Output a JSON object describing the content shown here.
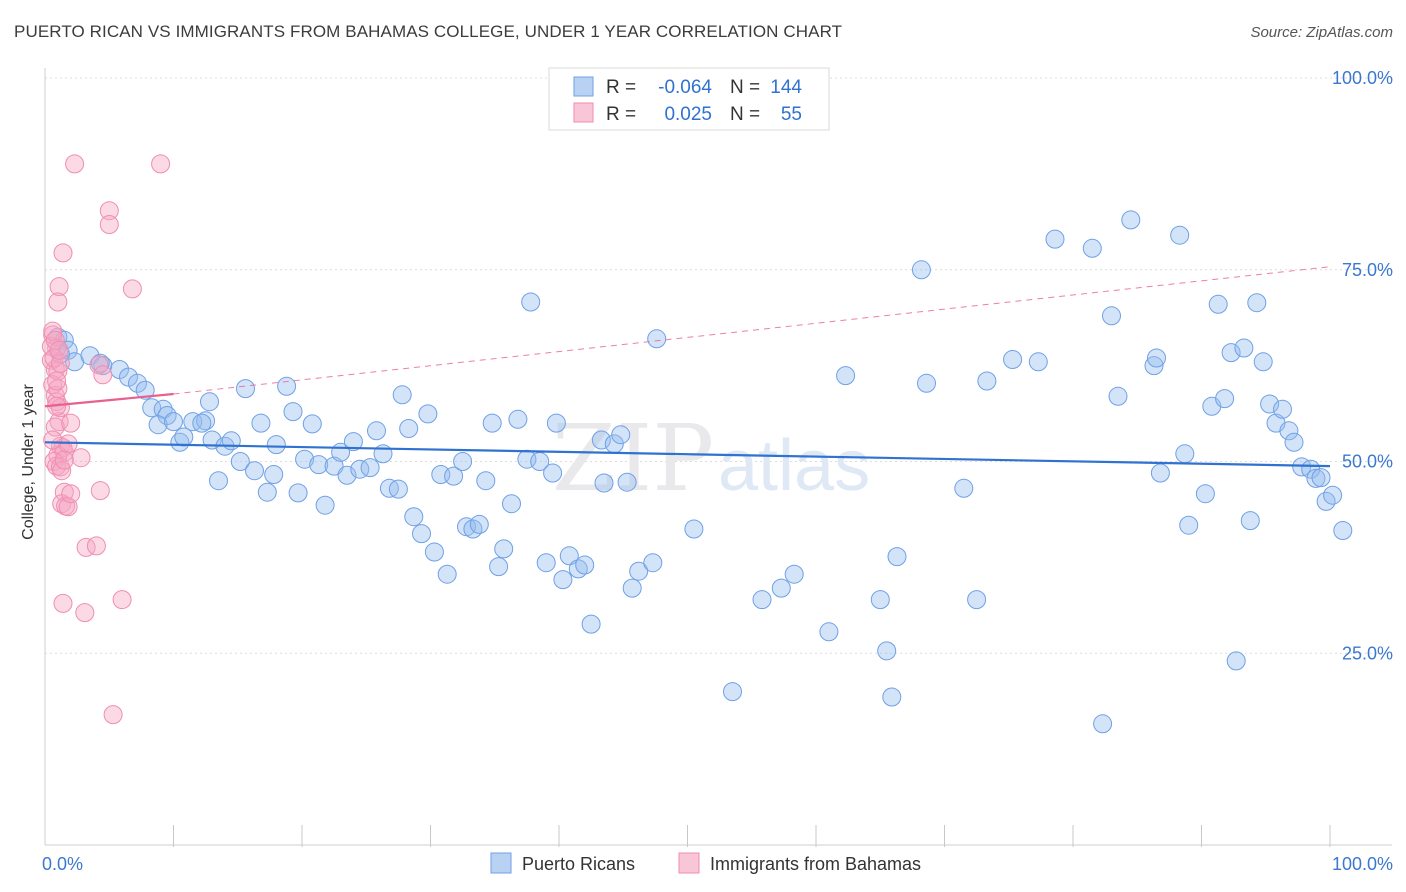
{
  "title": "PUERTO RICAN VS IMMIGRANTS FROM BAHAMAS COLLEGE, UNDER 1 YEAR CORRELATION CHART",
  "source": "Source: ZipAtlas.com",
  "watermark": {
    "zip": "ZIP",
    "atlas": "atlas"
  },
  "legend_top": {
    "rows": [
      {
        "r_label": "R =",
        "r_value": "-0.064",
        "n_label": "N =",
        "n_value": "144"
      },
      {
        "r_label": "R =",
        "r_value": "0.025",
        "n_label": "N =",
        "n_value": "55"
      }
    ]
  },
  "legend_bottom": [
    "Puerto Ricans",
    "Immigrants from Bahamas"
  ],
  "chart_data": {
    "type": "scatter",
    "xlabel": "",
    "ylabel": "College, Under 1 year",
    "xlim": [
      0,
      100
    ],
    "ylim": [
      0,
      100
    ],
    "x_tick_labels": [
      {
        "value": 0,
        "label": "0.0%"
      },
      {
        "value": 100,
        "label": "100.0%"
      }
    ],
    "y_tick_labels": [
      {
        "value": 25,
        "label": "25.0%"
      },
      {
        "value": 50,
        "label": "50.0%"
      },
      {
        "value": 75,
        "label": "75.0%"
      },
      {
        "value": 100,
        "label": "100.0%"
      }
    ],
    "series": [
      {
        "name": "Puerto Ricans",
        "color": "#6fa1e6",
        "line_color": "#2f72cf",
        "r": -0.064,
        "n": 144,
        "trend": {
          "x0": 0,
          "y0": 52.5,
          "x1": 100,
          "y1": 49.4
        },
        "points": [
          [
            1.0,
            66.2
          ],
          [
            1.5,
            65.8
          ],
          [
            1.8,
            64.5
          ],
          [
            2.3,
            63.0
          ],
          [
            1.2,
            64.0
          ],
          [
            3.5,
            63.8
          ],
          [
            4.5,
            62.5
          ],
          [
            4.3,
            62.8
          ],
          [
            5.8,
            62.0
          ],
          [
            6.5,
            61.0
          ],
          [
            7.2,
            60.2
          ],
          [
            7.8,
            59.3
          ],
          [
            8.3,
            57.0
          ],
          [
            9.2,
            56.8
          ],
          [
            9.5,
            56.0
          ],
          [
            8.8,
            54.8
          ],
          [
            10.0,
            55.2
          ],
          [
            10.5,
            52.5
          ],
          [
            10.8,
            53.2
          ],
          [
            11.5,
            55.2
          ],
          [
            12.5,
            55.3
          ],
          [
            12.8,
            57.8
          ],
          [
            12.2,
            55.0
          ],
          [
            13.0,
            52.8
          ],
          [
            13.5,
            47.5
          ],
          [
            14.0,
            52.0
          ],
          [
            14.5,
            52.7
          ],
          [
            15.2,
            50.0
          ],
          [
            15.6,
            59.5
          ],
          [
            16.3,
            48.8
          ],
          [
            16.8,
            55.0
          ],
          [
            17.3,
            46.0
          ],
          [
            17.8,
            48.3
          ],
          [
            18.0,
            52.2
          ],
          [
            18.8,
            59.8
          ],
          [
            19.3,
            56.5
          ],
          [
            19.7,
            45.9
          ],
          [
            20.2,
            50.3
          ],
          [
            20.8,
            54.9
          ],
          [
            21.3,
            49.6
          ],
          [
            21.8,
            44.3
          ],
          [
            22.5,
            49.4
          ],
          [
            23.0,
            51.2
          ],
          [
            23.5,
            48.2
          ],
          [
            24.0,
            52.6
          ],
          [
            24.5,
            49.0
          ],
          [
            25.3,
            49.2
          ],
          [
            25.8,
            54.0
          ],
          [
            26.3,
            51.0
          ],
          [
            26.8,
            46.5
          ],
          [
            27.5,
            46.4
          ],
          [
            27.8,
            58.7
          ],
          [
            28.3,
            54.3
          ],
          [
            28.7,
            42.8
          ],
          [
            29.3,
            40.6
          ],
          [
            29.8,
            56.2
          ],
          [
            30.3,
            38.2
          ],
          [
            30.8,
            48.3
          ],
          [
            31.3,
            35.3
          ],
          [
            31.8,
            48.1
          ],
          [
            32.5,
            50.0
          ],
          [
            32.8,
            41.5
          ],
          [
            33.3,
            41.2
          ],
          [
            33.8,
            41.8
          ],
          [
            34.3,
            47.5
          ],
          [
            34.8,
            55.0
          ],
          [
            35.3,
            36.3
          ],
          [
            35.7,
            38.6
          ],
          [
            36.3,
            44.5
          ],
          [
            36.8,
            55.5
          ],
          [
            37.5,
            50.3
          ],
          [
            37.8,
            70.8
          ],
          [
            38.5,
            50.0
          ],
          [
            39.0,
            36.8
          ],
          [
            39.5,
            48.5
          ],
          [
            39.8,
            55.0
          ],
          [
            40.3,
            34.6
          ],
          [
            40.8,
            37.7
          ],
          [
            41.5,
            36.0
          ],
          [
            42.0,
            36.5
          ],
          [
            42.5,
            28.8
          ],
          [
            43.3,
            52.8
          ],
          [
            43.5,
            47.2
          ],
          [
            44.3,
            52.3
          ],
          [
            44.8,
            53.5
          ],
          [
            45.3,
            47.3
          ],
          [
            45.7,
            33.5
          ],
          [
            46.2,
            35.7
          ],
          [
            47.3,
            36.8
          ],
          [
            47.6,
            66.0
          ],
          [
            50.5,
            41.2
          ],
          [
            53.5,
            20.0
          ],
          [
            55.8,
            32.0
          ],
          [
            57.3,
            33.5
          ],
          [
            58.3,
            35.3
          ],
          [
            61.0,
            27.8
          ],
          [
            62.3,
            61.2
          ],
          [
            65.0,
            32.0
          ],
          [
            65.5,
            25.3
          ],
          [
            65.9,
            19.3
          ],
          [
            66.3,
            37.6
          ],
          [
            68.2,
            75.0
          ],
          [
            68.6,
            60.2
          ],
          [
            71.5,
            46.5
          ],
          [
            72.5,
            32.0
          ],
          [
            73.3,
            60.5
          ],
          [
            75.3,
            63.3
          ],
          [
            77.3,
            63.0
          ],
          [
            78.6,
            79.0
          ],
          [
            81.5,
            77.8
          ],
          [
            82.3,
            15.8
          ],
          [
            83.0,
            69.0
          ],
          [
            83.5,
            58.5
          ],
          [
            84.5,
            81.5
          ],
          [
            86.3,
            62.5
          ],
          [
            86.5,
            63.5
          ],
          [
            86.8,
            48.5
          ],
          [
            88.3,
            79.5
          ],
          [
            88.7,
            51.0
          ],
          [
            89.0,
            41.7
          ],
          [
            90.3,
            45.8
          ],
          [
            90.8,
            57.2
          ],
          [
            91.3,
            70.5
          ],
          [
            91.8,
            58.2
          ],
          [
            92.3,
            64.2
          ],
          [
            92.7,
            24.0
          ],
          [
            93.3,
            64.8
          ],
          [
            93.8,
            42.3
          ],
          [
            94.3,
            70.7
          ],
          [
            94.8,
            63.0
          ],
          [
            95.3,
            57.5
          ],
          [
            95.8,
            55.0
          ],
          [
            96.3,
            56.8
          ],
          [
            96.8,
            54.0
          ],
          [
            97.2,
            52.5
          ],
          [
            97.8,
            49.3
          ],
          [
            98.5,
            49.0
          ],
          [
            98.9,
            47.8
          ],
          [
            99.3,
            47.9
          ],
          [
            99.7,
            44.8
          ],
          [
            100.2,
            45.6
          ],
          [
            101.0,
            41.0
          ]
        ]
      },
      {
        "name": "Immigrants from Bahamas",
        "color": "#f08db0",
        "line_color": "#e8608f",
        "r": 0.025,
        "n": 55,
        "trend": {
          "x0": 0,
          "y0": 57.2,
          "x1": 10,
          "y1": 58.8
        },
        "trend_dashed": {
          "x0": 10,
          "y0": 58.8,
          "x1": 100,
          "y1": 75.4
        },
        "points": [
          [
            0.6,
            66.5
          ],
          [
            0.9,
            64.8
          ],
          [
            0.5,
            63.2
          ],
          [
            0.8,
            62.0
          ],
          [
            1.0,
            61.8
          ],
          [
            0.6,
            60.0
          ],
          [
            0.8,
            58.6
          ],
          [
            0.9,
            57.8
          ],
          [
            1.1,
            55.2
          ],
          [
            0.8,
            54.5
          ],
          [
            1.2,
            52.0
          ],
          [
            1.4,
            51.8
          ],
          [
            1.5,
            51.2
          ],
          [
            1.0,
            50.8
          ],
          [
            0.7,
            50.0
          ],
          [
            0.9,
            49.4
          ],
          [
            1.2,
            49.3
          ],
          [
            1.5,
            46.0
          ],
          [
            1.3,
            44.5
          ],
          [
            1.6,
            44.2
          ],
          [
            1.8,
            44.1
          ],
          [
            2.3,
            88.8
          ],
          [
            2.8,
            50.5
          ],
          [
            3.2,
            38.8
          ],
          [
            3.1,
            30.3
          ],
          [
            1.4,
            31.5
          ],
          [
            1.1,
            72.8
          ],
          [
            1.0,
            70.8
          ],
          [
            1.4,
            77.2
          ],
          [
            4.0,
            39.0
          ],
          [
            4.3,
            46.2
          ],
          [
            4.2,
            62.6
          ],
          [
            4.5,
            61.3
          ],
          [
            5.0,
            82.7
          ],
          [
            5.0,
            80.9
          ],
          [
            5.3,
            17.0
          ],
          [
            6.0,
            32.0
          ],
          [
            6.8,
            72.5
          ],
          [
            9.0,
            88.8
          ],
          [
            0.5,
            65.0
          ],
          [
            0.7,
            63.5
          ],
          [
            1.0,
            59.5
          ],
          [
            1.2,
            57.0
          ],
          [
            2.0,
            55.0
          ],
          [
            1.8,
            52.3
          ],
          [
            0.6,
            67.0
          ],
          [
            0.9,
            60.5
          ],
          [
            1.3,
            48.8
          ],
          [
            0.8,
            65.8
          ],
          [
            1.2,
            62.8
          ],
          [
            1.5,
            50.2
          ],
          [
            2.0,
            45.8
          ],
          [
            0.6,
            52.8
          ],
          [
            0.9,
            57.2
          ],
          [
            1.1,
            64.5
          ]
        ]
      }
    ]
  }
}
